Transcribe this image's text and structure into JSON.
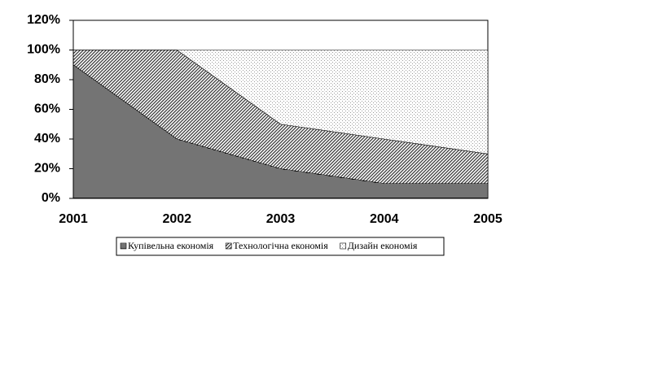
{
  "chart_data": {
    "type": "stacked-area",
    "categories": [
      "2001",
      "2002",
      "2003",
      "2004",
      "2005"
    ],
    "series": [
      {
        "name": "Купівельна економія",
        "color": "#222222",
        "values": [
          90,
          40,
          20,
          10,
          10
        ]
      },
      {
        "name": "Технологічна економія",
        "color": "#3a3a3a",
        "values": [
          10,
          60,
          30,
          30,
          20
        ]
      },
      {
        "name": "Дизайн економія",
        "color": "#9a9a9a",
        "values": [
          0,
          0,
          50,
          60,
          70
        ]
      }
    ],
    "ylim": [
      0,
      120
    ],
    "yticks": [
      {
        "value": 0,
        "label": "0%"
      },
      {
        "value": 20,
        "label": "20%"
      },
      {
        "value": 40,
        "label": "40%"
      },
      {
        "value": 60,
        "label": "60%"
      },
      {
        "value": 80,
        "label": "80%"
      },
      {
        "value": 100,
        "label": "100%"
      },
      {
        "value": 120,
        "label": "120%"
      }
    ]
  }
}
